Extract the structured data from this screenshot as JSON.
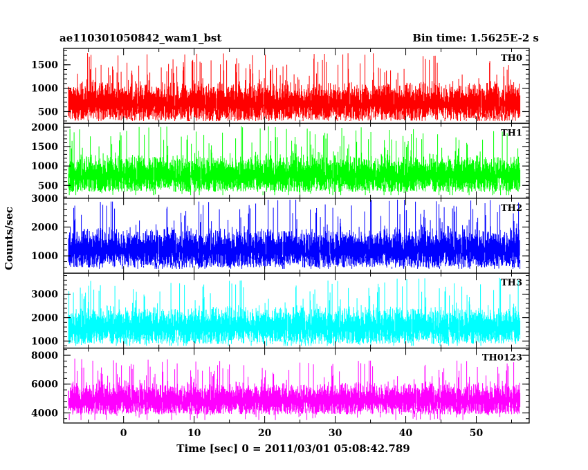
{
  "header": {
    "title": "ae110301050842_wam1_bst",
    "bin_time": "Bin time: 1.5625E-2 s"
  },
  "chart_data": {
    "type": "line",
    "title": "ae110301050842_wam1_bst",
    "subtitle": "Bin time: 1.5625E-2 s",
    "xlabel": "Time [sec] 0 = 2011/03/01 05:08:42.789",
    "ylabel": "Counts/sec",
    "xlim": [
      -8.5,
      57.5
    ],
    "x_ticks": [
      0,
      10,
      20,
      30,
      40,
      50
    ],
    "x_data_range": [
      -7.8,
      56.2
    ],
    "bin_time": 0.015625,
    "grid": false,
    "legend": "none",
    "panels": [
      {
        "name": "TH0",
        "color": "#ff0000",
        "ylim": [
          250,
          1850
        ],
        "ticks": [
          500,
          1000,
          1500
        ],
        "mean": 900,
        "noise": 230,
        "min_typ": 300,
        "max_typ": 1850
      },
      {
        "name": "TH1",
        "color": "#00ff00",
        "ylim": [
          170,
          2100
        ],
        "ticks": [
          500,
          1000,
          1500,
          2000
        ],
        "mean": 1030,
        "noise": 270,
        "min_typ": 250,
        "max_typ": 2100
      },
      {
        "name": "TH2",
        "color": "#0000ff",
        "ylim": [
          400,
          3000
        ],
        "ticks": [
          1000,
          2000,
          3000
        ],
        "mean": 1580,
        "noise": 380,
        "min_typ": 550,
        "max_typ": 2950
      },
      {
        "name": "TH3",
        "color": "#00ffff",
        "ylim": [
          700,
          3900
        ],
        "ticks": [
          1000,
          2000,
          3000
        ],
        "mean": 2040,
        "noise": 450,
        "min_typ": 800,
        "max_typ": 3850
      },
      {
        "name": "TH0123",
        "color": "#ff00ff",
        "ylim": [
          3300,
          8500
        ],
        "ticks": [
          4000,
          6000,
          8000
        ],
        "mean": 5500,
        "noise": 620,
        "min_typ": 3500,
        "max_typ": 8400
      }
    ]
  }
}
